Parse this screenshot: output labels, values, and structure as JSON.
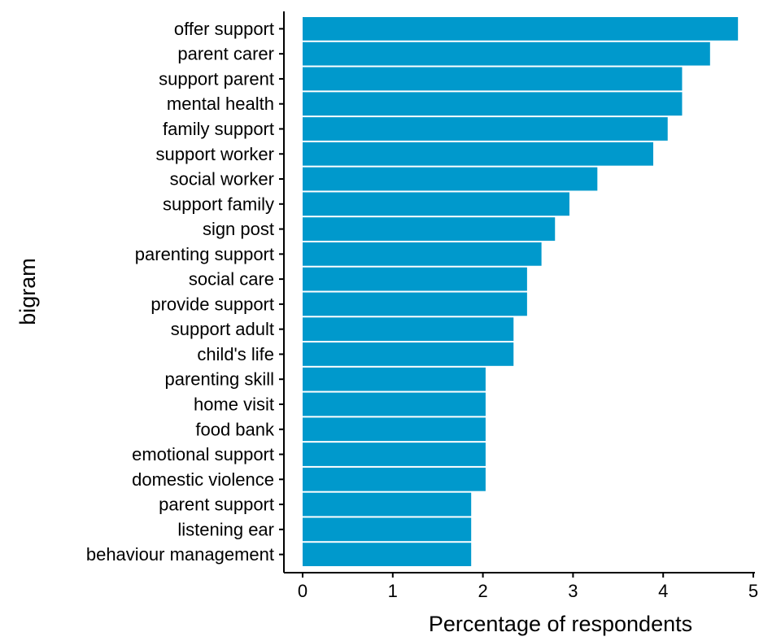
{
  "chart_data": {
    "type": "bar",
    "orientation": "horizontal",
    "xlabel": "Percentage of respondents",
    "ylabel": "bigram",
    "xlim": [
      0,
      5
    ],
    "xticks": [
      0,
      1,
      2,
      3,
      4,
      5
    ],
    "grid": false,
    "bar_color": "#0099CC",
    "categories": [
      "offer support",
      "parent carer",
      "support parent",
      "mental health",
      "family support",
      "support worker",
      "social worker",
      "support family",
      "sign post",
      "parenting support",
      "social care",
      "provide support",
      "support adult",
      "child's life",
      "parenting skill",
      "home visit",
      "food bank",
      "emotional support",
      "domestic violence",
      "parent support",
      "listening ear",
      "behaviour management"
    ],
    "values": [
      4.83,
      4.52,
      4.21,
      4.21,
      4.05,
      3.89,
      3.27,
      2.96,
      2.8,
      2.65,
      2.49,
      2.49,
      2.34,
      2.34,
      2.03,
      2.03,
      2.03,
      2.03,
      2.03,
      1.87,
      1.87,
      1.87
    ]
  }
}
